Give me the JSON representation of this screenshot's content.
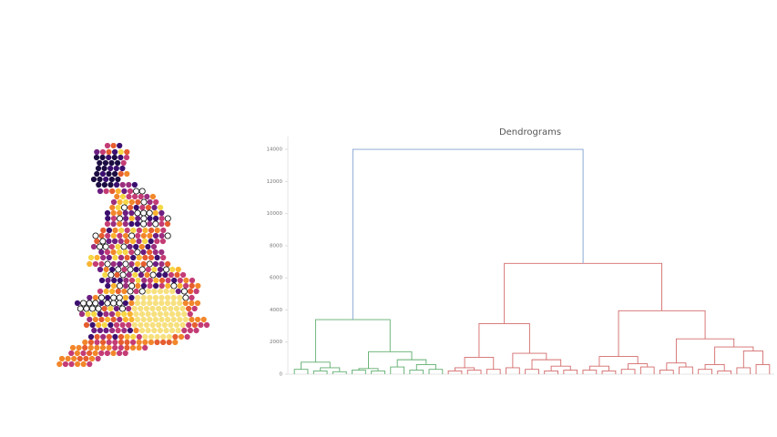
{
  "chart_data": {
    "type": "dendrogram",
    "title": "Dendrograms",
    "ylim": [
      0,
      14800
    ],
    "yticks": [
      0,
      2000,
      4000,
      6000,
      8000,
      10000,
      12000,
      14000
    ],
    "tree": {
      "height": 14000,
      "color": "#7f9fd0",
      "children": [
        {
          "height": 3400,
          "color": "#5fae6e",
          "children": [
            {
              "height": 750,
              "children": [
                {
                  "height": 300
                },
                {
                  "height": 400,
                  "children": [
                    {
                      "height": 200
                    },
                    {
                      "height": 150
                    }
                  ]
                }
              ]
            },
            {
              "height": 1400,
              "children": [
                {
                  "height": 350,
                  "children": [
                    {
                      "height": 250
                    },
                    {
                      "height": 200
                    }
                  ]
                },
                {
                  "height": 900,
                  "children": [
                    {
                      "height": 450
                    },
                    {
                      "height": 600,
                      "children": [
                        {
                          "height": 250
                        },
                        {
                          "height": 300
                        }
                      ]
                    }
                  ]
                }
              ]
            }
          ]
        },
        {
          "height": 6900,
          "color": "#d46a6a",
          "children": [
            {
              "height": 3150,
              "children": [
                {
                  "height": 1050,
                  "children": [
                    {
                      "height": 400,
                      "children": [
                        {
                          "height": 200
                        },
                        {
                          "height": 250
                        }
                      ]
                    },
                    {
                      "height": 300
                    }
                  ]
                },
                {
                  "height": 1300,
                  "children": [
                    {
                      "height": 400
                    },
                    {
                      "height": 900,
                      "children": [
                        {
                          "height": 300
                        },
                        {
                          "height": 500,
                          "children": [
                            {
                              "height": 200
                            },
                            {
                              "height": 250
                            }
                          ]
                        }
                      ]
                    }
                  ]
                }
              ]
            },
            {
              "height": 3950,
              "children": [
                {
                  "height": 1100,
                  "children": [
                    {
                      "height": 500,
                      "children": [
                        {
                          "height": 250
                        },
                        {
                          "height": 200
                        }
                      ]
                    },
                    {
                      "height": 650,
                      "children": [
                        {
                          "height": 300
                        },
                        {
                          "height": 450
                        }
                      ]
                    }
                  ]
                },
                {
                  "height": 2200,
                  "children": [
                    {
                      "height": 700,
                      "children": [
                        {
                          "height": 250
                        },
                        {
                          "height": 450
                        }
                      ]
                    },
                    {
                      "height": 1700,
                      "children": [
                        {
                          "height": 600,
                          "children": [
                            {
                              "height": 300
                            },
                            {
                              "height": 200
                            }
                          ]
                        },
                        {
                          "height": 1450,
                          "children": [
                            {
                              "height": 400
                            },
                            {
                              "height": 600
                            }
                          ]
                        }
                      ]
                    }
                  ]
                }
              ]
            }
          ]
        }
      ]
    }
  }
}
